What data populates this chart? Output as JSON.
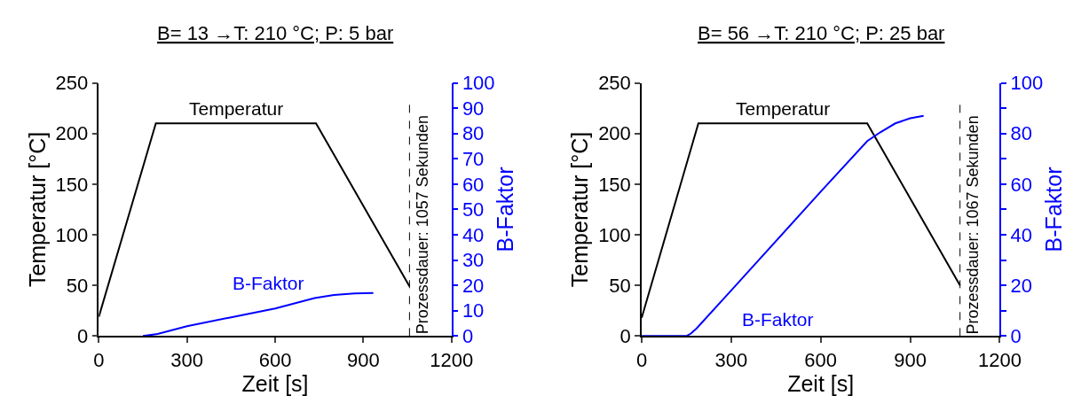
{
  "chart_data": [
    {
      "type": "line",
      "title": "B= 13 →T: 210 °C; P: 5 bar",
      "xlabel": "Zeit [s]",
      "ylabel": "Temperatur [°C]",
      "y2label": "B-Faktor",
      "xlim": [
        0,
        1200
      ],
      "xticks": [
        0,
        300,
        600,
        900,
        1200
      ],
      "ylim": [
        0,
        250
      ],
      "yticks": [
        0,
        50,
        100,
        150,
        200,
        250
      ],
      "y2lim": [
        0,
        100
      ],
      "y2ticks": [
        0,
        10,
        20,
        30,
        40,
        50,
        60,
        70,
        80,
        90,
        100
      ],
      "grid": false,
      "marker": "none",
      "line_style": "solid",
      "series": [
        {
          "name": "Temperatur",
          "color": "#000000",
          "x": [
            0,
            194,
            739,
            1057
          ],
          "values": [
            19,
            210,
            210,
            49
          ]
        },
        {
          "name": "B-Faktor",
          "color": "#0000ff",
          "axis": "y2",
          "x": [
            150,
            200,
            300,
            450,
            600,
            734,
            800,
            870,
            934
          ],
          "values": [
            0,
            0.8,
            3.9,
            7.4,
            10.9,
            15,
            16.2,
            16.8,
            17
          ]
        }
      ],
      "ref_lines": [
        {
          "axis": "x",
          "value": 1057,
          "label": "Prozessdauer: 1057 Sekunden",
          "line_style": "dashed",
          "color": "#000000"
        }
      ]
    },
    {
      "type": "line",
      "title": "B= 56 →T: 210 °C; P: 25 bar",
      "xlabel": "Zeit [s]",
      "ylabel": "Temperatur [°C]",
      "y2label": "B-Faktor",
      "xlim": [
        0,
        1200
      ],
      "xticks": [
        0,
        300,
        600,
        900,
        1200
      ],
      "ylim": [
        0,
        250
      ],
      "yticks": [
        0,
        50,
        100,
        150,
        200,
        250
      ],
      "y2lim": [
        0,
        100
      ],
      "y2ticks": [
        0,
        {
          "value": 10,
          "label": null
        },
        20,
        {
          "value": 30,
          "label": null
        },
        40,
        {
          "value": 50,
          "label": null
        },
        60,
        {
          "value": 70,
          "label": null
        },
        80,
        {
          "value": 90,
          "label": null
        },
        100
      ],
      "grid": false,
      "marker": "none",
      "line_style": "solid",
      "series": [
        {
          "name": "Temperatur",
          "color": "#000000",
          "x": [
            0,
            190,
            756,
            1067
          ],
          "values": [
            18,
            210,
            210,
            50
          ]
        },
        {
          "name": "B-Faktor",
          "color": "#0000ff",
          "axis": "y2",
          "x": [
            0,
            150,
            165,
            184,
            300,
            600,
            756,
            800,
            850,
            900,
            945
          ],
          "values": [
            0,
            0,
            1,
            3,
            18,
            57,
            77,
            80.5,
            84,
            86,
            87
          ]
        }
      ],
      "ref_lines": [
        {
          "axis": "x",
          "value": 1067,
          "label": "Prozessdauer: 1067 Sekunden",
          "line_style": "dashed",
          "color": "#000000"
        }
      ]
    }
  ]
}
